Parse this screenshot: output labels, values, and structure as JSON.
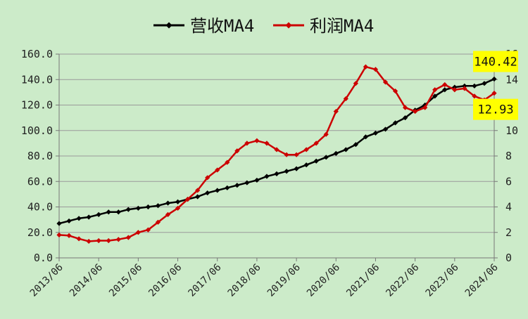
{
  "chart_data": {
    "type": "line",
    "legend_position": "top",
    "x": [
      "2013/06",
      "2013/09",
      "2013/12",
      "2014/03",
      "2014/06",
      "2014/09",
      "2014/12",
      "2015/03",
      "2015/06",
      "2015/09",
      "2015/12",
      "2016/03",
      "2016/06",
      "2016/09",
      "2016/12",
      "2017/03",
      "2017/06",
      "2017/09",
      "2017/12",
      "2018/03",
      "2018/06",
      "2018/09",
      "2018/12",
      "2019/03",
      "2019/06",
      "2019/09",
      "2019/12",
      "2020/03",
      "2020/06",
      "2020/09",
      "2020/12",
      "2021/03",
      "2021/06",
      "2021/09",
      "2021/12",
      "2022/03",
      "2022/06",
      "2022/09",
      "2022/12",
      "2023/03",
      "2023/06",
      "2023/09",
      "2023/12",
      "2024/03",
      "2024/06"
    ],
    "x_tick_labels": [
      "2013/06",
      "2014/06",
      "2015/06",
      "2016/06",
      "2017/06",
      "2018/06",
      "2019/06",
      "2020/06",
      "2021/06",
      "2022/06",
      "2023/06",
      "2024/06"
    ],
    "y_left": {
      "range": [
        0,
        160
      ],
      "ticks": [
        "0.0",
        "20.0",
        "40.0",
        "60.0",
        "80.0",
        "100.0",
        "120.0",
        "140.0",
        "160.0"
      ]
    },
    "y_right": {
      "range": [
        0,
        16
      ],
      "ticks": [
        "0",
        "2",
        "4",
        "6",
        "8",
        "10",
        "12",
        "14",
        "16"
      ]
    },
    "grid": "horizontal",
    "series": [
      {
        "name": "营收MA4",
        "axis": "left",
        "color": "#000000",
        "values": [
          27,
          29,
          31,
          32,
          34,
          36,
          36,
          38,
          39,
          40,
          41,
          43,
          44,
          46,
          48,
          51,
          53,
          55,
          57,
          59,
          61,
          64,
          66,
          68,
          70,
          73,
          76,
          79,
          82,
          85,
          89,
          95,
          98,
          101,
          106,
          110,
          116,
          120,
          127,
          132,
          134,
          135,
          135,
          137,
          140.42
        ]
      },
      {
        "name": "利润MA4",
        "axis": "right",
        "color": "#cc0000",
        "values": [
          1.8,
          1.75,
          1.5,
          1.3,
          1.35,
          1.35,
          1.45,
          1.6,
          2.0,
          2.2,
          2.8,
          3.4,
          3.9,
          4.6,
          5.3,
          6.3,
          6.9,
          7.5,
          8.4,
          9.0,
          9.2,
          9.0,
          8.5,
          8.1,
          8.1,
          8.5,
          9.0,
          9.7,
          11.5,
          12.5,
          13.7,
          15.0,
          14.8,
          13.8,
          13.1,
          11.8,
          11.5,
          11.8,
          13.2,
          13.6,
          13.2,
          13.3,
          12.7,
          12.4,
          12.93
        ]
      }
    ],
    "callouts": [
      {
        "series": 0,
        "label": "140.42"
      },
      {
        "series": 1,
        "label": "12.93"
      }
    ]
  }
}
